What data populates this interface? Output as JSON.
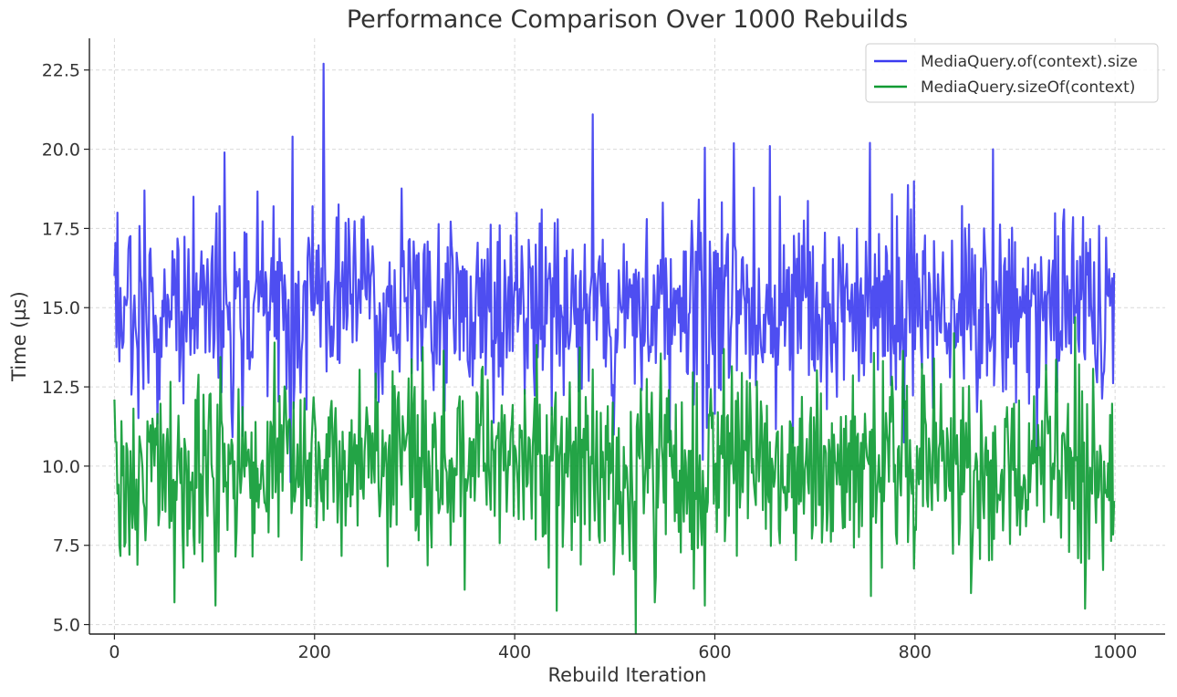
{
  "chart_data": {
    "type": "line",
    "title": "Performance Comparison Over 1000 Rebuilds",
    "xlabel": "Rebuild Iteration",
    "ylabel": "Time (µs)",
    "xlim": [
      -25,
      1050
    ],
    "ylim": [
      4.7,
      23.5
    ],
    "xticks": [
      0,
      200,
      400,
      600,
      800,
      1000
    ],
    "xtick_labels": [
      "0",
      "200",
      "400",
      "600",
      "800",
      "1000"
    ],
    "yticks": [
      5.0,
      7.5,
      10.0,
      12.5,
      15.0,
      17.5,
      20.0,
      22.5
    ],
    "ytick_labels": [
      "5.0",
      "7.5",
      "10.0",
      "12.5",
      "15.0",
      "17.5",
      "20.0",
      "22.5"
    ],
    "grid": true,
    "legend_position": "top-right",
    "series": [
      {
        "name": "MediaQuery.of(context).size",
        "color": "#3b3bf0",
        "x_start": 0,
        "x_step": 1,
        "n": 1000,
        "mean_approx": 15.0,
        "noise_std_approx": 1.6,
        "seed": 20240531,
        "anchors": [
          {
            "x": 0,
            "y": 16.0
          },
          {
            "x": 3,
            "y": 18.0
          },
          {
            "x": 30,
            "y": 18.7
          },
          {
            "x": 110,
            "y": 19.9
          },
          {
            "x": 178,
            "y": 20.4
          },
          {
            "x": 209,
            "y": 22.7
          },
          {
            "x": 478,
            "y": 21.1
          },
          {
            "x": 588,
            "y": 10.2
          },
          {
            "x": 655,
            "y": 20.1
          },
          {
            "x": 755,
            "y": 20.2
          },
          {
            "x": 878,
            "y": 20.0
          },
          {
            "x": 999,
            "y": 16.1
          }
        ]
      },
      {
        "name": "MediaQuery.sizeOf(context)",
        "color": "#0b9a32",
        "x_start": 0,
        "x_step": 1,
        "n": 1000,
        "mean_approx": 10.0,
        "noise_std_approx": 1.5,
        "seed": 987654321,
        "anchors": [
          {
            "x": 0,
            "y": 12.1
          },
          {
            "x": 60,
            "y": 5.7
          },
          {
            "x": 101,
            "y": 5.6
          },
          {
            "x": 160,
            "y": 13.9
          },
          {
            "x": 350,
            "y": 6.1
          },
          {
            "x": 540,
            "y": 5.7
          },
          {
            "x": 590,
            "y": 5.6
          },
          {
            "x": 756,
            "y": 5.9
          },
          {
            "x": 960,
            "y": 14.7
          },
          {
            "x": 970,
            "y": 5.5
          },
          {
            "x": 999,
            "y": 8.9
          }
        ]
      }
    ]
  }
}
